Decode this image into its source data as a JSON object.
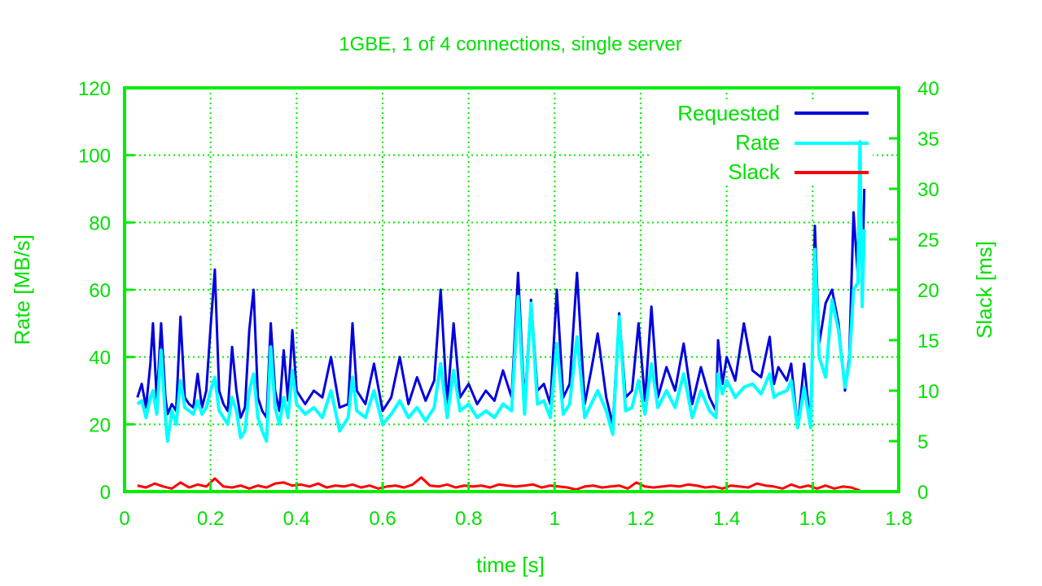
{
  "chart_data": {
    "type": "line",
    "title": "1GBE, 1 of 4 connections, single server",
    "xlabel": "time [s]",
    "ylabel": "Rate [MB/s]",
    "y2label": "Slack [ms]",
    "xlim": [
      0,
      1.8
    ],
    "ylim": [
      0,
      120
    ],
    "y2lim": [
      0,
      40
    ],
    "xticks": [
      "0",
      "0.2",
      "0.4",
      "0.6",
      "0.8",
      "1",
      "1.2",
      "1.4",
      "1.6",
      "1.8"
    ],
    "yticks": [
      "0",
      "20",
      "40",
      "60",
      "80",
      "100",
      "120"
    ],
    "y2ticks": [
      "0",
      "5",
      "10",
      "15",
      "20",
      "25",
      "30",
      "35",
      "40"
    ],
    "grid": true,
    "legend_position": "top-right",
    "colors": {
      "axis": "#00ee00",
      "requested": "#0000e0",
      "rate": "#00ffff",
      "slack": "#ff0000"
    },
    "series": [
      {
        "name": "Requested",
        "axis": "left",
        "x": [
          0.03,
          0.04,
          0.05,
          0.06,
          0.066,
          0.075,
          0.085,
          0.095,
          0.1,
          0.11,
          0.12,
          0.13,
          0.14,
          0.15,
          0.16,
          0.17,
          0.18,
          0.19,
          0.2,
          0.21,
          0.22,
          0.23,
          0.24,
          0.25,
          0.26,
          0.27,
          0.28,
          0.29,
          0.3,
          0.31,
          0.32,
          0.33,
          0.34,
          0.35,
          0.36,
          0.37,
          0.38,
          0.39,
          0.4,
          0.42,
          0.44,
          0.46,
          0.48,
          0.5,
          0.52,
          0.53,
          0.54,
          0.56,
          0.58,
          0.6,
          0.62,
          0.64,
          0.66,
          0.68,
          0.7,
          0.72,
          0.735,
          0.75,
          0.765,
          0.78,
          0.8,
          0.82,
          0.84,
          0.86,
          0.88,
          0.9,
          0.915,
          0.93,
          0.945,
          0.96,
          0.975,
          0.99,
          1.005,
          1.02,
          1.035,
          1.052,
          1.07,
          1.085,
          1.1,
          1.12,
          1.135,
          1.15,
          1.165,
          1.18,
          1.195,
          1.21,
          1.225,
          1.24,
          1.26,
          1.28,
          1.3,
          1.32,
          1.34,
          1.36,
          1.375,
          1.38,
          1.39,
          1.4,
          1.42,
          1.44,
          1.46,
          1.48,
          1.5,
          1.51,
          1.52,
          1.54,
          1.55,
          1.565,
          1.58,
          1.595,
          1.605,
          1.615,
          1.63,
          1.645,
          1.66,
          1.675,
          1.685,
          1.695,
          1.705,
          1.71,
          1.715,
          1.72
        ],
        "y": [
          28,
          32,
          25,
          38,
          50,
          27,
          50,
          28,
          23,
          26,
          24,
          52,
          28,
          26,
          25,
          35,
          25,
          30,
          49,
          66,
          30,
          26,
          24,
          43,
          30,
          22,
          25,
          48,
          60,
          28,
          24,
          22,
          50,
          30,
          24,
          42,
          27,
          48,
          30,
          26,
          30,
          28,
          40,
          25,
          26,
          50,
          30,
          26,
          38,
          24,
          28,
          40,
          26,
          34,
          27,
          33,
          60,
          26,
          50,
          28,
          32,
          26,
          30,
          27,
          36,
          28,
          65,
          26,
          57,
          30,
          32,
          26,
          60,
          28,
          32,
          65,
          26,
          36,
          47,
          28,
          20,
          53,
          28,
          30,
          50,
          27,
          55,
          28,
          37,
          30,
          44,
          26,
          37,
          28,
          24,
          45,
          32,
          40,
          33,
          50,
          36,
          34,
          46,
          32,
          37,
          33,
          38,
          19,
          38,
          19,
          79,
          44,
          56,
          60,
          50,
          30,
          40,
          83,
          64,
          104,
          62,
          90
        ]
      },
      {
        "name": "Rate",
        "axis": "left",
        "x": [
          0.03,
          0.04,
          0.05,
          0.06,
          0.066,
          0.075,
          0.085,
          0.095,
          0.1,
          0.11,
          0.12,
          0.13,
          0.14,
          0.15,
          0.16,
          0.17,
          0.18,
          0.19,
          0.2,
          0.21,
          0.22,
          0.23,
          0.24,
          0.25,
          0.26,
          0.27,
          0.28,
          0.29,
          0.3,
          0.31,
          0.32,
          0.33,
          0.34,
          0.35,
          0.36,
          0.37,
          0.38,
          0.39,
          0.4,
          0.42,
          0.44,
          0.46,
          0.48,
          0.5,
          0.52,
          0.53,
          0.54,
          0.56,
          0.58,
          0.6,
          0.62,
          0.64,
          0.66,
          0.68,
          0.7,
          0.72,
          0.735,
          0.75,
          0.765,
          0.78,
          0.8,
          0.82,
          0.84,
          0.86,
          0.88,
          0.9,
          0.915,
          0.93,
          0.945,
          0.96,
          0.975,
          0.99,
          1.005,
          1.02,
          1.035,
          1.052,
          1.07,
          1.085,
          1.1,
          1.12,
          1.135,
          1.15,
          1.165,
          1.18,
          1.195,
          1.21,
          1.225,
          1.24,
          1.26,
          1.28,
          1.3,
          1.32,
          1.34,
          1.36,
          1.375,
          1.38,
          1.39,
          1.4,
          1.42,
          1.44,
          1.46,
          1.48,
          1.5,
          1.51,
          1.52,
          1.54,
          1.55,
          1.565,
          1.58,
          1.595,
          1.605,
          1.615,
          1.63,
          1.645,
          1.66,
          1.675,
          1.685,
          1.695,
          1.705,
          1.71,
          1.715,
          1.72
        ],
        "y": [
          26,
          27,
          22,
          28,
          30,
          23,
          42,
          22,
          15,
          24,
          20,
          33,
          25,
          24,
          23,
          27,
          23,
          25,
          30,
          34,
          24,
          22,
          20,
          28,
          24,
          16,
          18,
          30,
          35,
          22,
          18,
          15,
          43,
          25,
          20,
          28,
          22,
          36,
          26,
          23,
          25,
          22,
          30,
          18,
          22,
          34,
          24,
          22,
          30,
          20,
          23,
          27,
          22,
          25,
          21,
          25,
          38,
          22,
          36,
          24,
          26,
          22,
          24,
          22,
          26,
          24,
          58,
          23,
          56,
          26,
          27,
          22,
          44,
          23,
          26,
          46,
          22,
          26,
          30,
          24,
          17,
          52,
          24,
          25,
          33,
          23,
          38,
          25,
          30,
          25,
          35,
          22,
          30,
          24,
          22,
          35,
          29,
          33,
          28,
          31,
          32,
          29,
          35,
          28,
          29,
          30,
          33,
          19,
          31,
          19,
          72,
          40,
          34,
          57,
          48,
          31,
          38,
          60,
          62,
          104,
          55,
          78
        ]
      },
      {
        "name": "Slack",
        "axis": "right",
        "x": [
          0.03,
          0.05,
          0.07,
          0.09,
          0.11,
          0.13,
          0.15,
          0.17,
          0.19,
          0.21,
          0.23,
          0.25,
          0.27,
          0.29,
          0.31,
          0.33,
          0.35,
          0.37,
          0.39,
          0.41,
          0.43,
          0.45,
          0.47,
          0.49,
          0.51,
          0.53,
          0.55,
          0.57,
          0.59,
          0.61,
          0.63,
          0.65,
          0.67,
          0.69,
          0.71,
          0.73,
          0.75,
          0.77,
          0.79,
          0.81,
          0.83,
          0.85,
          0.87,
          0.89,
          0.91,
          0.93,
          0.95,
          0.97,
          0.99,
          1.01,
          1.03,
          1.05,
          1.07,
          1.09,
          1.11,
          1.13,
          1.15,
          1.17,
          1.19,
          1.21,
          1.23,
          1.25,
          1.27,
          1.29,
          1.31,
          1.33,
          1.35,
          1.37,
          1.39,
          1.41,
          1.43,
          1.45,
          1.47,
          1.49,
          1.51,
          1.53,
          1.55,
          1.57,
          1.59,
          1.61,
          1.63,
          1.65,
          1.67,
          1.69,
          1.71
        ],
        "y": [
          0.6,
          0.4,
          0.8,
          0.5,
          0.3,
          0.9,
          0.4,
          0.7,
          0.5,
          1.3,
          0.5,
          0.4,
          0.6,
          0.3,
          0.6,
          0.4,
          0.8,
          0.9,
          0.6,
          0.7,
          0.5,
          0.8,
          0.4,
          0.6,
          0.5,
          0.7,
          0.4,
          0.6,
          0.3,
          0.5,
          0.6,
          0.4,
          0.7,
          1.4,
          0.6,
          0.5,
          0.7,
          0.4,
          0.6,
          0.5,
          0.6,
          0.4,
          0.7,
          0.6,
          0.5,
          0.6,
          0.7,
          0.4,
          0.6,
          0.5,
          0.4,
          0.2,
          0.5,
          0.6,
          0.4,
          0.5,
          0.6,
          0.3,
          0.9,
          0.5,
          0.4,
          0.5,
          0.6,
          0.5,
          0.7,
          0.6,
          0.4,
          0.5,
          0.3,
          0.6,
          0.5,
          0.4,
          0.8,
          0.6,
          0.5,
          0.3,
          0.7,
          0.4,
          0.6,
          0.3,
          0.6,
          0.3,
          0.5,
          0.4,
          0.1
        ]
      }
    ]
  }
}
